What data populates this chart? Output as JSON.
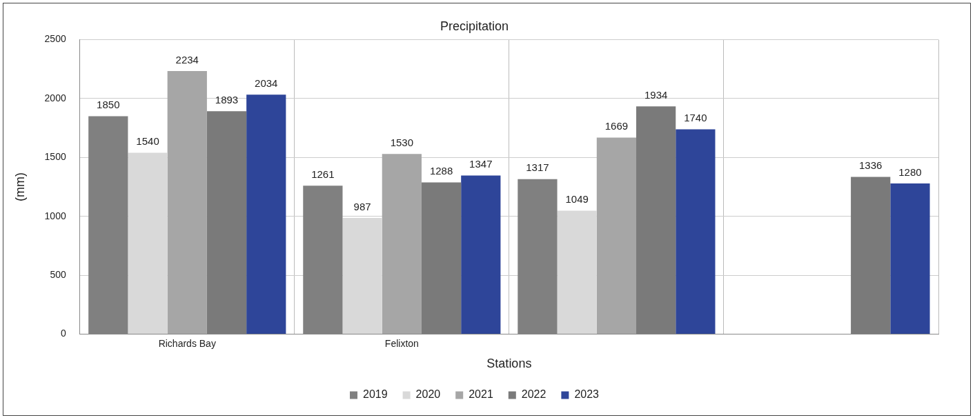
{
  "chart_data": {
    "type": "bar",
    "title": "Precipitation",
    "xlabel": "Stations",
    "ylabel": "(mm)",
    "categories": [
      "Richards Bay",
      "Felixton",
      null,
      null
    ],
    "series": [
      {
        "name": "2019",
        "color": "#808080",
        "values": [
          1850,
          1261,
          1317,
          null
        ]
      },
      {
        "name": "2020",
        "color": "#d9d9d9",
        "values": [
          1540,
          987,
          1049,
          null
        ]
      },
      {
        "name": "2021",
        "color": "#a6a6a6",
        "values": [
          2234,
          1530,
          1669,
          null
        ]
      },
      {
        "name": "2022",
        "color": "#7a7a7a",
        "values": [
          1893,
          1288,
          1934,
          1336
        ]
      },
      {
        "name": "2023",
        "color": "#2e4599",
        "values": [
          2034,
          1347,
          1740,
          1280
        ]
      }
    ],
    "ylim": [
      0,
      2500
    ],
    "yticks": [
      0,
      500,
      1000,
      1500,
      2000,
      2500
    ],
    "grid": true,
    "legend": "bottom",
    "data_labels": true
  }
}
